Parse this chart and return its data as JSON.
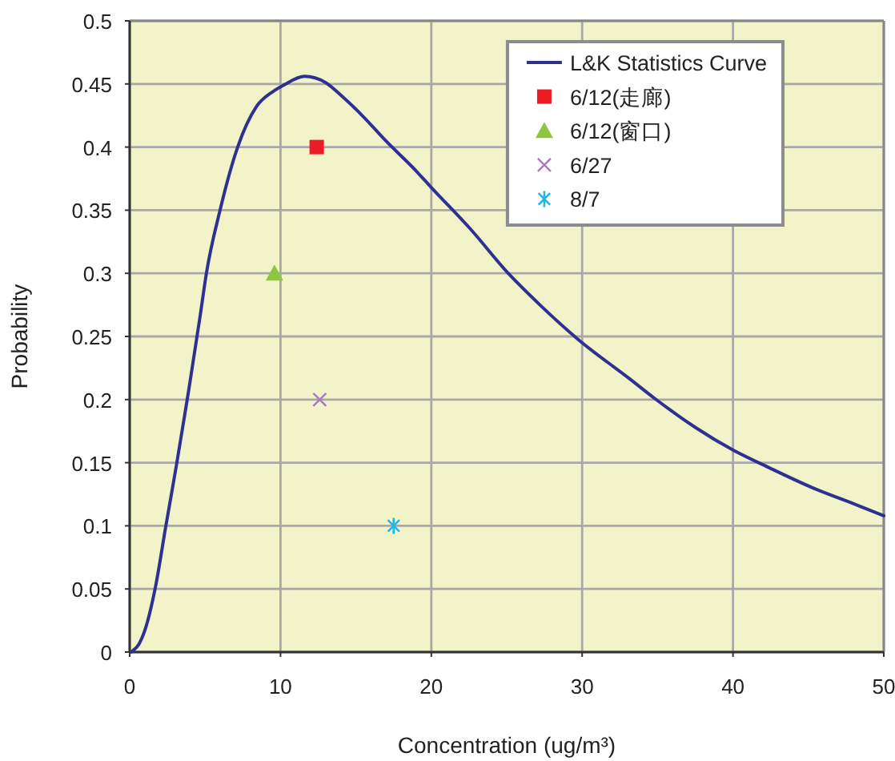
{
  "chart_data": {
    "type": "line",
    "xlabel": "Concentration (ug/m³)",
    "ylabel": "Probability",
    "xlim": [
      0,
      50
    ],
    "xticks": [
      0,
      10,
      20,
      30,
      40,
      50
    ],
    "ylim": [
      0,
      0.5
    ],
    "yticks": [
      0,
      0.05,
      0.1,
      0.15,
      0.2,
      0.25,
      0.3,
      0.35,
      0.4,
      0.45,
      0.5
    ],
    "grid": true,
    "legend": "top right",
    "series": [
      {
        "name": "L&K Statistics Curve",
        "color": "#2e3192",
        "marker": "none",
        "line_style": "solid",
        "x": [
          0.1,
          0.6,
          1.0,
          1.7,
          2.4,
          3.1,
          3.8,
          4.0,
          4.68,
          5.1,
          5.99,
          7.16,
          8.4,
          9.5,
          10.2,
          11.6,
          13.0,
          14.1,
          15.5,
          16.9,
          19.0,
          20.0,
          22.6,
          25.1,
          27.2,
          29.7,
          33.2,
          34.8,
          36.4,
          37.5,
          40.0,
          42.4,
          45.3,
          48.1,
          50.0
        ],
        "values": [
          0,
          0.006,
          0.017,
          0.051,
          0.1,
          0.148,
          0.199,
          0.214,
          0.267,
          0.301,
          0.35,
          0.4,
          0.432,
          0.444,
          0.449,
          0.456,
          0.451,
          0.44,
          0.424,
          0.406,
          0.381,
          0.368,
          0.335,
          0.3,
          0.275,
          0.248,
          0.216,
          0.201,
          0.187,
          0.178,
          0.16,
          0.146,
          0.13,
          0.117,
          0.108
        ]
      },
      {
        "name": "6/12(走廊)",
        "type": "scatter",
        "color": "#ed1c24",
        "marker": "square",
        "x": [
          12.4
        ],
        "values": [
          0.4
        ]
      },
      {
        "name": "6/12(窗口)",
        "type": "scatter",
        "color": "#8dc63f",
        "marker": "triangle",
        "x": [
          9.6
        ],
        "values": [
          0.3
        ]
      },
      {
        "name": "6/27",
        "type": "scatter",
        "color": "#a77bbd",
        "marker": "cross",
        "x": [
          12.6
        ],
        "values": [
          0.2
        ]
      },
      {
        "name": "8/7",
        "type": "scatter",
        "color": "#27b6e3",
        "x": [
          17.5
        ],
        "values": [
          0.1
        ]
      }
    ]
  }
}
